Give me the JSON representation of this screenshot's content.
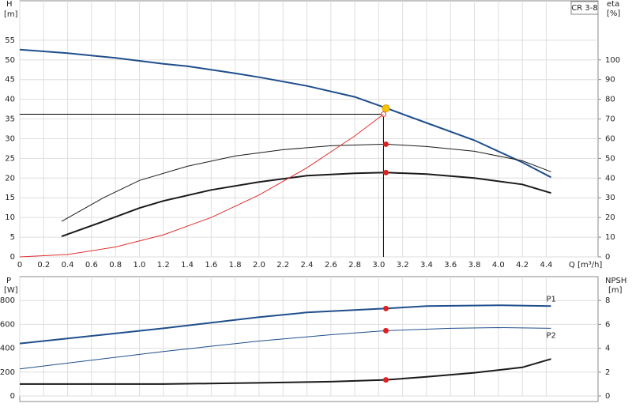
{
  "chart_data": [
    {
      "type": "line",
      "model": "CR 3-8",
      "y_label": "H",
      "y_unit": "[m]",
      "y2_label": "eta",
      "y2_unit": "[%]",
      "x_label": "Q [m³/h]",
      "xlim": [
        0,
        4.8
      ],
      "xticks": [
        0,
        0.2,
        0.4,
        0.6,
        0.8,
        {
          "value": 1,
          "label": "1.0"
        },
        1.2,
        1.4,
        1.6,
        1.8,
        {
          "value": 2,
          "label": "2.0"
        },
        2.2,
        2.4,
        2.6,
        2.8,
        {
          "value": 3,
          "label": "3.0"
        },
        3.2,
        3.4,
        3.6,
        3.8,
        {
          "value": 4,
          "label": "4.0"
        },
        4.2,
        4.4
      ],
      "ylim": [
        0,
        65
      ],
      "yticks": [
        0,
        5,
        10,
        15,
        20,
        25,
        30,
        35,
        40,
        45,
        50,
        55
      ],
      "y2lim": [
        0,
        130
      ],
      "y2ticks": [
        0,
        10,
        20,
        30,
        40,
        50,
        60,
        70,
        80,
        90,
        100
      ],
      "grid": true,
      "series": [
        {
          "color": "#1f4e8c",
          "line_width": 2,
          "x": [
            0,
            0.4,
            0.8,
            1.2,
            1.4,
            1.8,
            2.0,
            2.4,
            2.8,
            3.06,
            3.4,
            3.8,
            4.2,
            4.44
          ],
          "values": [
            52.6,
            51.7,
            50.5,
            49,
            48.4,
            46.6,
            45.6,
            43.4,
            40.6,
            37.8,
            34,
            29.6,
            24,
            20.2
          ]
        },
        {
          "color": "#1a1a1a",
          "line_width": 1,
          "axis": "y2",
          "x": [
            0.35,
            0.7,
            1.0,
            1.4,
            1.8,
            2.2,
            2.6,
            3.06,
            3.4,
            3.8,
            4.2,
            4.44
          ],
          "values": [
            18,
            30,
            38.8,
            46,
            51.2,
            54.4,
            56.4,
            57.2,
            56,
            53.6,
            48.8,
            43.2
          ]
        },
        {
          "color": "#1a1a1a",
          "line_width": 2,
          "axis": "y2",
          "x": [
            0.35,
            0.7,
            1.0,
            1.2,
            1.6,
            2.0,
            2.4,
            2.8,
            3.06,
            3.4,
            3.8,
            4.2,
            4.44
          ],
          "values": [
            10.4,
            18,
            24.8,
            28.4,
            34,
            38,
            41.2,
            42.4,
            42.8,
            42,
            40,
            36.8,
            32.4
          ]
        },
        {
          "color": "#e03030",
          "line_width": 1,
          "x": [
            0,
            0.4,
            0.8,
            1.2,
            1.6,
            2.0,
            2.4,
            2.8,
            3.04
          ],
          "values": [
            0,
            0.6,
            2.5,
            5.6,
            10,
            15.7,
            22.6,
            30.7,
            36.2
          ]
        }
      ],
      "operating_point": {
        "x": 3.04,
        "y": 36.2
      },
      "markers": [
        {
          "x": 3.06,
          "y": 37.7,
          "color": "#f5c400"
        },
        {
          "x": 3.06,
          "y": 57.2,
          "axis": "y2",
          "color": "#e02020"
        },
        {
          "x": 3.06,
          "y": 42.8,
          "axis": "y2",
          "color": "#e02020"
        }
      ]
    },
    {
      "type": "line",
      "y_label": "P",
      "y_unit": "[W]",
      "y2_label": "NPSH",
      "y2_unit": "[m]",
      "xlim": [
        0,
        4.8
      ],
      "xticks": [
        0,
        0.2,
        0.4,
        0.6,
        0.8,
        1,
        1.2,
        1.4,
        1.6,
        1.8,
        2,
        2.2,
        2.4,
        2.6,
        2.8,
        3,
        3.2,
        3.4,
        3.6,
        3.8,
        4,
        4.2,
        4.4
      ],
      "ylim": [
        0,
        1000
      ],
      "yticks": [
        0,
        200,
        400,
        600,
        800
      ],
      "y2lim": [
        0,
        10
      ],
      "y2ticks": [
        0,
        2,
        4,
        6,
        8
      ],
      "grid": true,
      "series": [
        {
          "name": "P1",
          "label_position": "above",
          "color": "#1f4e8c",
          "line_width": 2,
          "x": [
            0,
            1.2,
            2.0,
            2.4,
            3.06,
            3.4,
            4.0,
            4.44
          ],
          "values": [
            440,
            567,
            660,
            700,
            733,
            753,
            760,
            753
          ]
        },
        {
          "name": "P2",
          "label_position": "below",
          "color": "#1f4e8c",
          "line_width": 1,
          "x": [
            0,
            1.2,
            2.0,
            2.6,
            3.06,
            3.6,
            4.0,
            4.44
          ],
          "values": [
            227,
            373,
            460,
            513,
            547,
            567,
            573,
            567
          ]
        },
        {
          "color": "#1a1a1a",
          "line_width": 2,
          "axis": "y2",
          "x": [
            0,
            1.2,
            2.0,
            2.6,
            3.06,
            3.4,
            3.8,
            4.2,
            4.44
          ],
          "values": [
            1.0,
            1.0,
            1.1,
            1.2,
            1.35,
            1.6,
            1.95,
            2.4,
            3.1
          ]
        }
      ],
      "markers": [
        {
          "x": 3.06,
          "y": 733,
          "color": "#e02020"
        },
        {
          "x": 3.06,
          "y": 547,
          "color": "#e02020"
        },
        {
          "x": 3.06,
          "y": 1.35,
          "axis": "y2",
          "color": "#e02020"
        }
      ]
    }
  ]
}
